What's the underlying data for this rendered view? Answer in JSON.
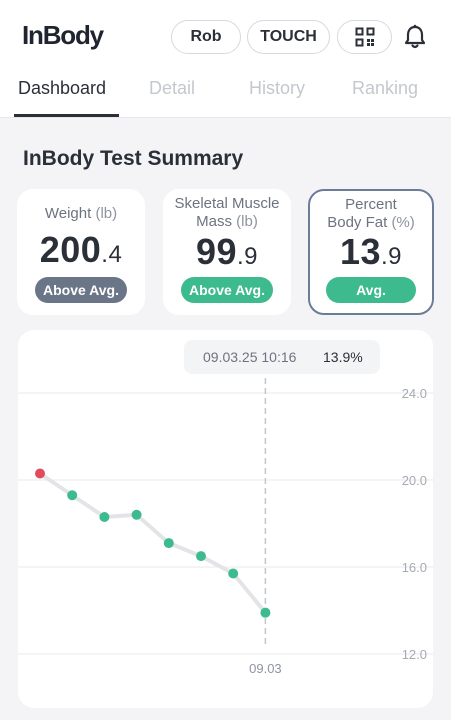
{
  "app": {
    "logo": "InBody"
  },
  "header": {
    "user_label": "Rob",
    "touch_label": "TOUCH",
    "qr_icon": "qr-code-icon",
    "bell_icon": "bell-icon"
  },
  "tabs": [
    {
      "label": "Dashboard",
      "active": true
    },
    {
      "label": "Detail",
      "active": false
    },
    {
      "label": "History",
      "active": false
    },
    {
      "label": "Ranking",
      "active": false
    }
  ],
  "summary": {
    "title": "InBody Test Summary",
    "cards": [
      {
        "label_line1": "Weight",
        "label_line2": "",
        "unit": "(lb)",
        "value_int": "200",
        "value_dec": ".4",
        "badge": "Above Avg.",
        "badge_color": "#6b7588"
      },
      {
        "label_line1": "Skeletal Muscle",
        "label_line2": "Mass",
        "unit": "(lb)",
        "value_int": "99",
        "value_dec": ".9",
        "badge": "Above Avg.",
        "badge_color": "#3dbb8e"
      },
      {
        "label_line1": "Percent",
        "label_line2": "Body Fat",
        "unit": "(%)",
        "value_int": "13",
        "value_dec": ".9",
        "badge": "Avg.",
        "badge_color": "#3dbb8e",
        "selected": true
      }
    ]
  },
  "chart": {
    "tooltip_date": "09.03.25 10:16",
    "tooltip_value": "13.9%",
    "selected_x_label": "09.03"
  },
  "chart_data": {
    "type": "line",
    "title": "",
    "xlabel": "",
    "ylabel": "",
    "ylim": [
      12.0,
      24.0
    ],
    "y_ticks": [
      "24.0",
      "20.0",
      "16.0",
      "12.0"
    ],
    "grid": true,
    "series": [
      {
        "values": [
          20.3,
          19.3,
          18.3,
          18.4,
          17.1,
          16.5,
          15.7,
          13.9
        ]
      }
    ],
    "point_colors": [
      "#e24b5e",
      "#3dbb8e",
      "#3dbb8e",
      "#3dbb8e",
      "#3dbb8e",
      "#3dbb8e",
      "#3dbb8e",
      "#3dbb8e"
    ],
    "selected_index": 7,
    "x_labels": [
      "",
      "",
      "",
      "",
      "",
      "",
      "",
      "09.03"
    ]
  }
}
